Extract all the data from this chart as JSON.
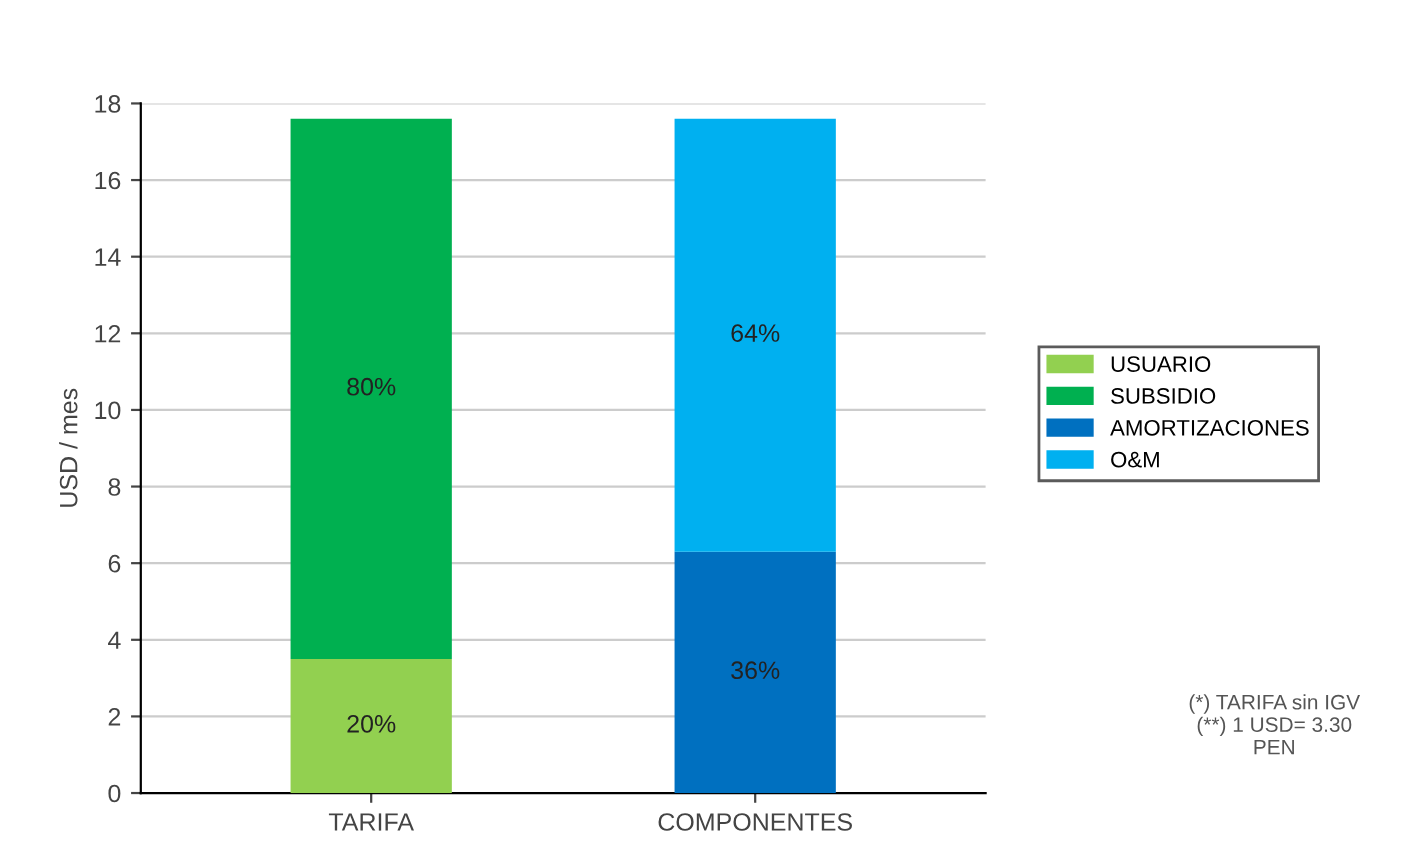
{
  "chart_data": {
    "type": "bar",
    "stacked": true,
    "ylabel": "USD / mes",
    "categories": [
      "TARIFA",
      "COMPONENTES"
    ],
    "series": [
      {
        "name": "USUARIO",
        "color": "#92d050",
        "values": [
          3.5,
          null
        ]
      },
      {
        "name": "SUBSIDIO",
        "color": "#00b050",
        "values": [
          14.1,
          null
        ]
      },
      {
        "name": "AMORTIZACIONES",
        "color": "#0070c0",
        "values": [
          null,
          6.3
        ]
      },
      {
        "name": "O&M",
        "color": "#00b0f0",
        "values": [
          null,
          11.3
        ]
      }
    ],
    "ylim": [
      0,
      18
    ],
    "yticks": [
      0,
      2,
      4,
      6,
      8,
      10,
      12,
      14,
      16,
      18
    ],
    "grid": "y",
    "legend": "right",
    "annotations": [
      "20%",
      "80%",
      "36%",
      "64%",
      "(*) TARIFA sin IGV\n(**) 1 USD= 3.30\nPEN"
    ]
  }
}
